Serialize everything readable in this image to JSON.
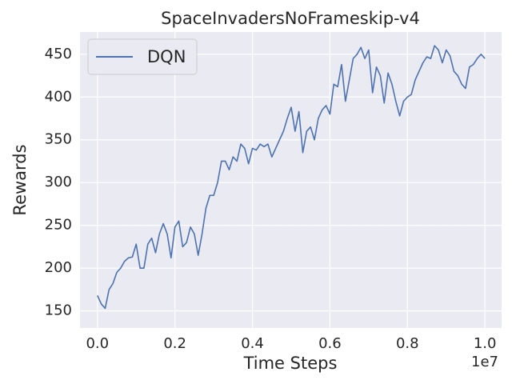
{
  "chart_data": {
    "type": "line",
    "title": "SpaceInvadersNoFrameskip-v4",
    "x_label": "Time Steps",
    "y_label": "Rewards",
    "x_offset_label": "1e7",
    "xlim": [
      -450000,
      10430000
    ],
    "ylim": [
      130,
      476
    ],
    "xticks": [
      {
        "value": 0,
        "label": "0.0"
      },
      {
        "value": 2000000,
        "label": "0.2"
      },
      {
        "value": 4000000,
        "label": "0.4"
      },
      {
        "value": 6000000,
        "label": "0.6"
      },
      {
        "value": 8000000,
        "label": "0.8"
      },
      {
        "value": 10000000,
        "label": "1.0"
      }
    ],
    "yticks": [
      150,
      200,
      250,
      300,
      350,
      400,
      450
    ],
    "grid": true,
    "legend": "upper left",
    "background": "#eaeaf2",
    "x": [
      0,
      100000,
      200000,
      300000,
      400000,
      500000,
      600000,
      700000,
      800000,
      900000,
      1000000,
      1100000,
      1200000,
      1300000,
      1400000,
      1500000,
      1600000,
      1700000,
      1800000,
      1900000,
      2000000,
      2100000,
      2200000,
      2300000,
      2400000,
      2500000,
      2600000,
      2700000,
      2800000,
      2900000,
      3000000,
      3100000,
      3200000,
      3300000,
      3400000,
      3500000,
      3600000,
      3700000,
      3800000,
      3900000,
      4000000,
      4100000,
      4200000,
      4300000,
      4400000,
      4500000,
      4600000,
      4700000,
      4800000,
      4900000,
      5000000,
      5100000,
      5200000,
      5300000,
      5400000,
      5500000,
      5600000,
      5700000,
      5800000,
      5900000,
      6000000,
      6100000,
      6200000,
      6300000,
      6400000,
      6500000,
      6600000,
      6700000,
      6800000,
      6900000,
      7000000,
      7100000,
      7200000,
      7300000,
      7400000,
      7500000,
      7600000,
      7700000,
      7800000,
      7900000,
      8000000,
      8100000,
      8200000,
      8300000,
      8400000,
      8500000,
      8600000,
      8700000,
      8800000,
      8900000,
      9000000,
      9100000,
      9200000,
      9300000,
      9400000,
      9500000,
      9600000,
      9700000,
      9800000,
      9900000,
      10000000
    ],
    "series": [
      {
        "name": "DQN",
        "color": "#4c72b0",
        "values": [
          168,
          158,
          153,
          175,
          182,
          195,
          200,
          208,
          212,
          213,
          228,
          200,
          200,
          228,
          235,
          218,
          240,
          252,
          240,
          212,
          248,
          255,
          225,
          230,
          248,
          240,
          215,
          240,
          270,
          285,
          285,
          300,
          325,
          325,
          315,
          330,
          325,
          345,
          340,
          322,
          340,
          338,
          345,
          342,
          345,
          330,
          340,
          350,
          360,
          375,
          388,
          360,
          383,
          335,
          360,
          365,
          350,
          375,
          385,
          390,
          380,
          415,
          412,
          438,
          395,
          420,
          445,
          450,
          458,
          445,
          455,
          405,
          435,
          425,
          393,
          428,
          415,
          395,
          378,
          395,
          400,
          403,
          420,
          430,
          440,
          447,
          445,
          460,
          455,
          440,
          455,
          448,
          430,
          425,
          415,
          410,
          435,
          438,
          445,
          450,
          445
        ]
      }
    ]
  }
}
